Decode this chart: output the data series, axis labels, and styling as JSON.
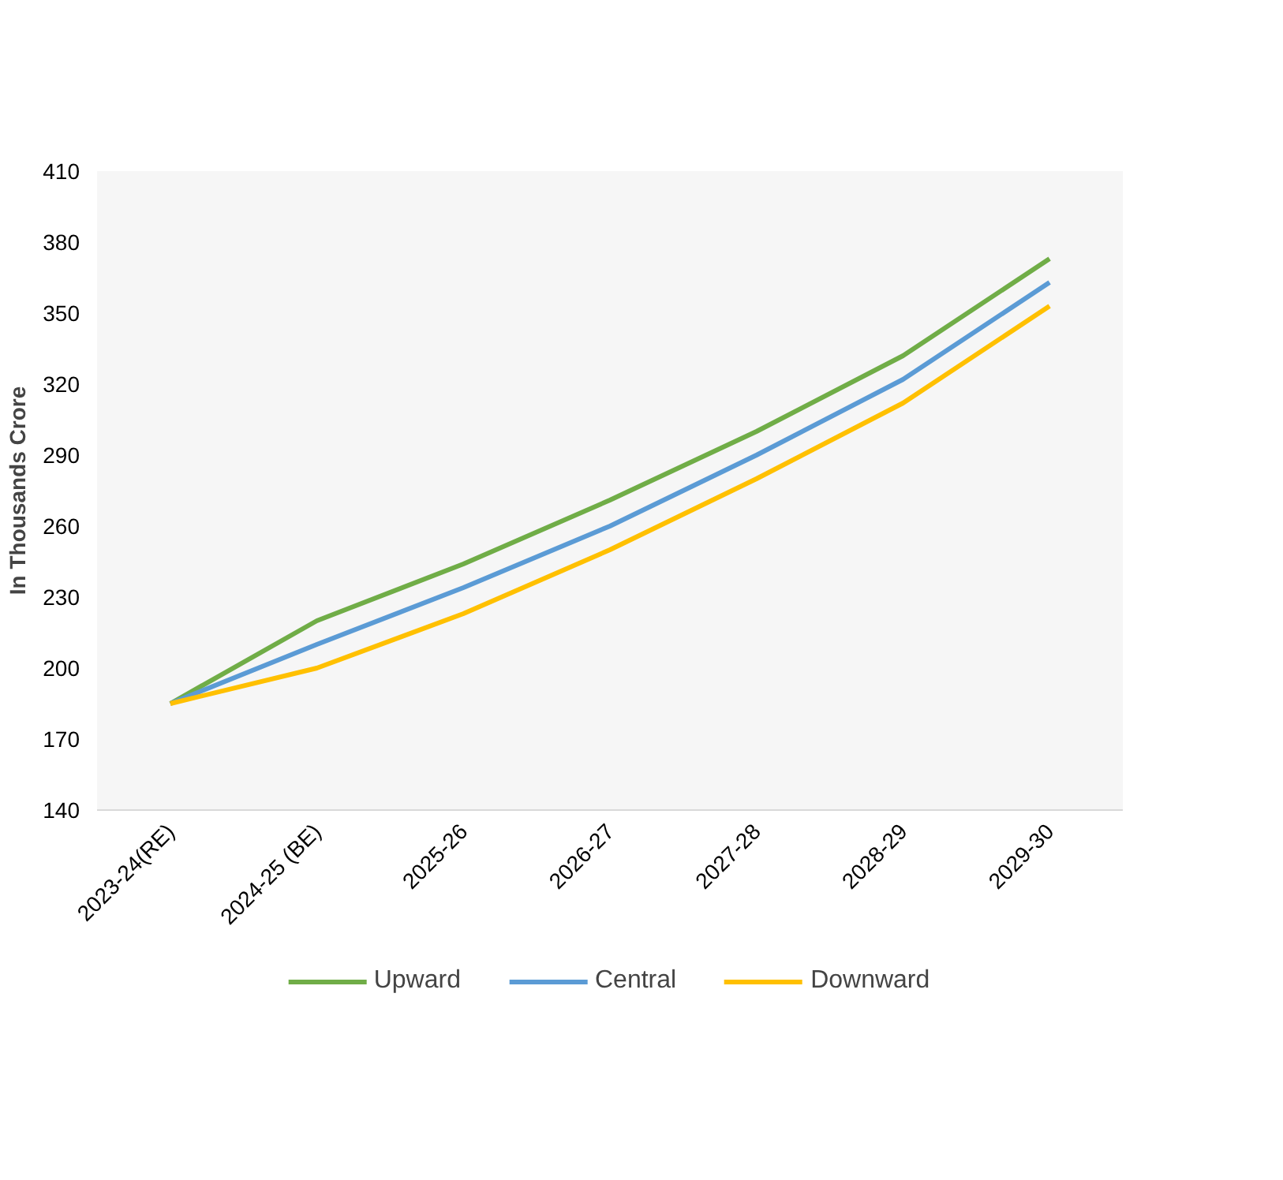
{
  "chart_data": {
    "type": "line",
    "ylabel": "In Thousands Crore",
    "categories": [
      "2023-24(RE)",
      "2024-25 (BE)",
      "2025-26",
      "2026-27",
      "2027-28",
      "2028-29",
      "2029-30"
    ],
    "series": [
      {
        "name": "Upward",
        "color": "#70ad47",
        "values": [
          185,
          220,
          244,
          271,
          300,
          332,
          373
        ]
      },
      {
        "name": "Central",
        "color": "#5b9bd5",
        "values": [
          185,
          210,
          234,
          260,
          290,
          322,
          363
        ]
      },
      {
        "name": "Downward",
        "color": "#ffc000",
        "values": [
          185,
          200,
          223,
          250,
          280,
          312,
          353
        ]
      }
    ],
    "ylim": [
      140,
      410
    ],
    "yticks": [
      140,
      170,
      200,
      230,
      260,
      290,
      320,
      350,
      380,
      410
    ],
    "grid": false,
    "legend": "bottom",
    "marker": "none",
    "line_style": "solid"
  }
}
